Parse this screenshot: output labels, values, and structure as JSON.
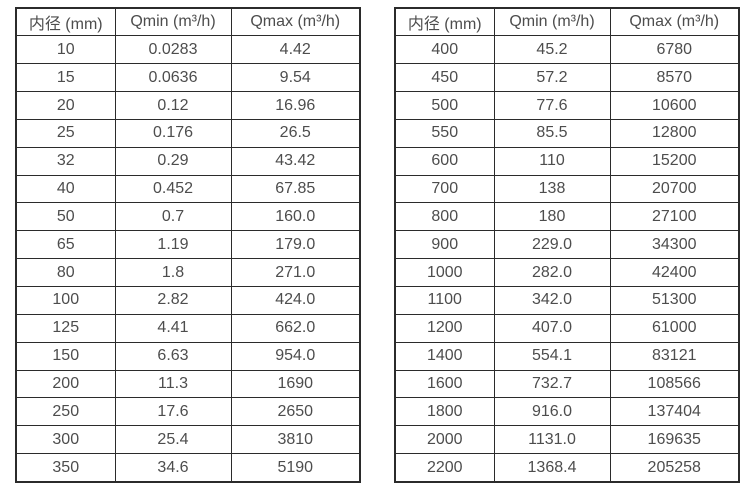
{
  "tables": [
    {
      "name": "flow-table-small-diameters",
      "headers": [
        "内径 (mm)",
        "Qmin (m³/h)",
        "Qmax (m³/h)"
      ],
      "rows": [
        [
          "10",
          "0.0283",
          "4.42"
        ],
        [
          "15",
          "0.0636",
          "9.54"
        ],
        [
          "20",
          "0.12",
          "16.96"
        ],
        [
          "25",
          "0.176",
          "26.5"
        ],
        [
          "32",
          "0.29",
          "43.42"
        ],
        [
          "40",
          "0.452",
          "67.85"
        ],
        [
          "50",
          "0.7",
          "160.0"
        ],
        [
          "65",
          "1.19",
          "179.0"
        ],
        [
          "80",
          "1.8",
          "271.0"
        ],
        [
          "100",
          "2.82",
          "424.0"
        ],
        [
          "125",
          "4.41",
          "662.0"
        ],
        [
          "150",
          "6.63",
          "954.0"
        ],
        [
          "200",
          "11.3",
          "1690"
        ],
        [
          "250",
          "17.6",
          "2650"
        ],
        [
          "300",
          "25.4",
          "3810"
        ],
        [
          "350",
          "34.6",
          "5190"
        ]
      ]
    },
    {
      "name": "flow-table-large-diameters",
      "headers": [
        "内径 (mm)",
        "Qmin (m³/h)",
        "Qmax (m³/h)"
      ],
      "rows": [
        [
          "400",
          "45.2",
          "6780"
        ],
        [
          "450",
          "57.2",
          "8570"
        ],
        [
          "500",
          "77.6",
          "10600"
        ],
        [
          "550",
          "85.5",
          "12800"
        ],
        [
          "600",
          "110",
          "15200"
        ],
        [
          "700",
          "138",
          "20700"
        ],
        [
          "800",
          "180",
          "27100"
        ],
        [
          "900",
          "229.0",
          "34300"
        ],
        [
          "1000",
          "282.0",
          "42400"
        ],
        [
          "1100",
          "342.0",
          "51300"
        ],
        [
          "1200",
          "407.0",
          "61000"
        ],
        [
          "1400",
          "554.1",
          "83121"
        ],
        [
          "1600",
          "732.7",
          "108566"
        ],
        [
          "1800",
          "916.0",
          "137404"
        ],
        [
          "2000",
          "1131.0",
          "169635"
        ],
        [
          "2200",
          "1368.4",
          "205258"
        ]
      ]
    }
  ],
  "colors": {
    "border": "#2b2b2b",
    "text": "#4d4d4d",
    "background": "#ffffff"
  }
}
